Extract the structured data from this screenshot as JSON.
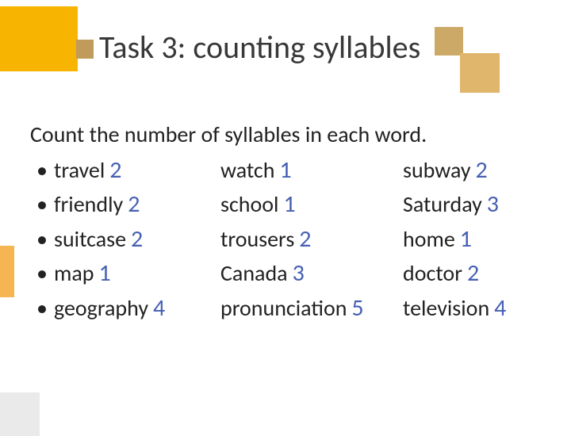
{
  "title": "Task 3: counting syllables",
  "intro": "Count the number of syllables in each word.",
  "colors": {
    "title_text": "#383838",
    "body_text": "#222222",
    "number_text": "#455fb3",
    "orange_block": "#f7b400",
    "brown_block": "#cda968",
    "background": "#ffffff"
  },
  "fontsize": {
    "title": 40,
    "body": 28,
    "number": 30
  },
  "rows": [
    {
      "c1w": "travel",
      "c1n": "2",
      "c2w": "watch",
      "c2n": "1",
      "c3w": "subway",
      "c3n": "2"
    },
    {
      "c1w": "friendly",
      "c1n": "2",
      "c2w": "school",
      "c2n": "1",
      "c3w": "Saturday",
      "c3n": "3"
    },
    {
      "c1w": "suitcase",
      "c1n": "2",
      "c2w": "trousers",
      "c2n": "2",
      "c3w": "home",
      "c3n": "1"
    },
    {
      "c1w": "map",
      "c1n": "1",
      "c2w": "Canada",
      "c2n": "3",
      "c3w": "doctor",
      "c3n": "2"
    },
    {
      "c1w": "geography",
      "c1n": "4",
      "c2w": "pronunciation",
      "c2n": "5",
      "c3w": "television",
      "c3n": "4"
    }
  ]
}
